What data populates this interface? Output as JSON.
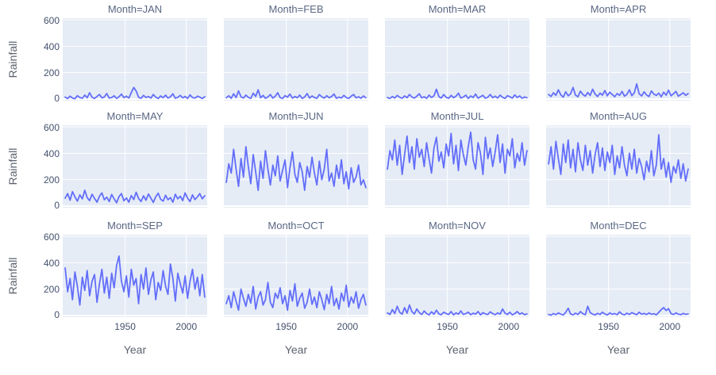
{
  "figure": {
    "y_axis_title": "Rainfall",
    "x_axis_title": "Year",
    "y_ticks": [
      "0",
      "200",
      "400",
      "600"
    ],
    "x_ticks": [
      "1950",
      "2000"
    ]
  },
  "colors": {
    "background": "#ffffff",
    "panel_background": "#e5ecf6",
    "gridline": "#ffffff",
    "line": "#636efa",
    "facet_title_text": "#5a6784",
    "tick_text": "#44516c",
    "axis_title_text": "#5c626e"
  },
  "chart_data": {
    "type": "line",
    "title": "",
    "facet_by": "Month",
    "facet_layout": "3 rows x 4 columns",
    "xlabel": "Year",
    "ylabel": "Rainfall",
    "x_range": [
      1899,
      2017
    ],
    "y_range": [
      -12,
      612
    ],
    "x_tick_values": [
      1950,
      2000
    ],
    "y_tick_values": [
      0,
      200,
      400,
      600
    ],
    "grid": true,
    "legend": false,
    "line_color": "#636efa",
    "x": [
      1901,
      1903,
      1905,
      1907,
      1909,
      1911,
      1913,
      1915,
      1917,
      1919,
      1921,
      1923,
      1925,
      1927,
      1929,
      1931,
      1933,
      1935,
      1937,
      1939,
      1941,
      1943,
      1945,
      1947,
      1949,
      1951,
      1953,
      1955,
      1957,
      1959,
      1961,
      1963,
      1965,
      1967,
      1969,
      1971,
      1973,
      1975,
      1977,
      1979,
      1981,
      1983,
      1985,
      1987,
      1989,
      1991,
      1993,
      1995,
      1997,
      1999,
      2001,
      2003,
      2005,
      2007,
      2009,
      2011,
      2013,
      2015
    ],
    "series": [
      {
        "name": "JAN",
        "label": "Month=JAN",
        "values": [
          15,
          4,
          22,
          8,
          3,
          26,
          12,
          6,
          30,
          10,
          48,
          14,
          5,
          20,
          35,
          9,
          16,
          42,
          7,
          12,
          25,
          5,
          18,
          38,
          10,
          22,
          8,
          50,
          88,
          62,
          14,
          6,
          28,
          12,
          20,
          7,
          35,
          15,
          5,
          24,
          10,
          30,
          8,
          18,
          40,
          6,
          14,
          28,
          9,
          20,
          5,
          32,
          12,
          7,
          22,
          15,
          4,
          18
        ]
      },
      {
        "name": "FEB",
        "label": "Month=FEB",
        "values": [
          10,
          25,
          6,
          40,
          12,
          62,
          18,
          8,
          30,
          14,
          5,
          45,
          20,
          70,
          10,
          28,
          6,
          16,
          35,
          8,
          22,
          48,
          12,
          5,
          26,
          15,
          38,
          7,
          20,
          10,
          30,
          5,
          16,
          42,
          8,
          24,
          12,
          6,
          34,
          18,
          7,
          26,
          10,
          20,
          38,
          6,
          15,
          8,
          28,
          12,
          5,
          22,
          35,
          9,
          18,
          6,
          24,
          10
        ]
      },
      {
        "name": "MAR",
        "label": "Month=MAR",
        "values": [
          12,
          5,
          20,
          8,
          28,
          14,
          6,
          24,
          10,
          35,
          16,
          7,
          22,
          40,
          9,
          18,
          5,
          30,
          12,
          25,
          75,
          20,
          8,
          34,
          14,
          6,
          28,
          10,
          22,
          45,
          8,
          16,
          30,
          5,
          24,
          12,
          38,
          7,
          18,
          28,
          6,
          15,
          35,
          10,
          22,
          8,
          30,
          14,
          5,
          26,
          18,
          7,
          32,
          12,
          24,
          6,
          16,
          10
        ]
      },
      {
        "name": "APR",
        "label": "Month=APR",
        "values": [
          35,
          20,
          48,
          28,
          70,
          32,
          15,
          55,
          25,
          40,
          88,
          30,
          18,
          60,
          35,
          22,
          50,
          28,
          75,
          38,
          20,
          45,
          30,
          65,
          25,
          52,
          35,
          18,
          42,
          28,
          58,
          22,
          36,
          70,
          26,
          48,
          115,
          40,
          24,
          55,
          32,
          20,
          62,
          38,
          28,
          45,
          18,
          52,
          30,
          68,
          25,
          40,
          58,
          22,
          35,
          48,
          28,
          42
        ]
      },
      {
        "name": "MAY",
        "label": "Month=MAY",
        "values": [
          60,
          95,
          45,
          110,
          70,
          38,
          85,
          55,
          120,
          65,
          42,
          90,
          58,
          30,
          75,
          100,
          48,
          68,
          35,
          88,
          55,
          25,
          72,
          95,
          40,
          62,
          30,
          80,
          50,
          105,
          58,
          35,
          78,
          45,
          92,
          60,
          28,
          70,
          98,
          52,
          38,
          82,
          48,
          65,
          30,
          90,
          55,
          75,
          42,
          100,
          60,
          35,
          85,
          50,
          70,
          95,
          55,
          78
        ]
      },
      {
        "name": "JUN",
        "label": "Month=JUN",
        "values": [
          180,
          320,
          250,
          430,
          280,
          150,
          360,
          220,
          450,
          300,
          170,
          390,
          260,
          120,
          340,
          210,
          420,
          280,
          160,
          310,
          230,
          380,
          190,
          270,
          350,
          140,
          290,
          410,
          240,
          180,
          330,
          260,
          120,
          300,
          220,
          370,
          250,
          160,
          340,
          200,
          280,
          430,
          190,
          250,
          150,
          310,
          210,
          350,
          170,
          260,
          130,
          290,
          180,
          220,
          310,
          160,
          200,
          140
        ]
      },
      {
        "name": "JUL",
        "label": "Month=JUL",
        "values": [
          280,
          420,
          350,
          500,
          310,
          460,
          240,
          390,
          530,
          330,
          450,
          280,
          510,
          370,
          430,
          300,
          480,
          360,
          250,
          440,
          520,
          340,
          410,
          290,
          470,
          380,
          550,
          320,
          460,
          270,
          500,
          390,
          310,
          450,
          560,
          350,
          280,
          480,
          400,
          240,
          520,
          360,
          440,
          300,
          410,
          540,
          330,
          470,
          250,
          430,
          380,
          510,
          290,
          400,
          340,
          480,
          310,
          420
        ]
      },
      {
        "name": "AUG",
        "label": "Month=AUG",
        "values": [
          320,
          450,
          280,
          490,
          360,
          240,
          470,
          330,
          500,
          290,
          430,
          260,
          480,
          350,
          270,
          460,
          310,
          420,
          250,
          390,
          480,
          300,
          440,
          270,
          410,
          330,
          460,
          240,
          380,
          290,
          450,
          310,
          230,
          400,
          280,
          430,
          250,
          360,
          300,
          200,
          340,
          260,
          420,
          230,
          310,
          540,
          280,
          360,
          220,
          330,
          180,
          300,
          250,
          350,
          210,
          320,
          190,
          280
        ]
      },
      {
        "name": "SEP",
        "label": "Month=SEP",
        "values": [
          360,
          180,
          280,
          120,
          330,
          220,
          80,
          290,
          190,
          340,
          150,
          260,
          310,
          100,
          240,
          350,
          170,
          290,
          130,
          320,
          210,
          380,
          450,
          260,
          180,
          300,
          140,
          350,
          230,
          280,
          90,
          310,
          200,
          360,
          160,
          270,
          330,
          120,
          250,
          190,
          340,
          220,
          160,
          390,
          280,
          110,
          320,
          240,
          170,
          300,
          130,
          260,
          350,
          200,
          290,
          150,
          310,
          140
        ]
      },
      {
        "name": "OCT",
        "label": "Month=OCT",
        "values": [
          90,
          150,
          60,
          180,
          110,
          40,
          200,
          130,
          70,
          160,
          95,
          220,
          50,
          140,
          180,
          80,
          120,
          250,
          100,
          60,
          170,
          130,
          210,
          90,
          150,
          40,
          190,
          110,
          240,
          70,
          130,
          170,
          55,
          100,
          200,
          85,
          140,
          60,
          180,
          120,
          45,
          160,
          90,
          220,
          75,
          130,
          50,
          170,
          110,
          230,
          65,
          140,
          95,
          180,
          55,
          120,
          160,
          80
        ]
      },
      {
        "name": "NOV",
        "label": "Month=NOV",
        "values": [
          20,
          8,
          45,
          15,
          70,
          25,
          10,
          60,
          18,
          80,
          30,
          12,
          50,
          22,
          8,
          35,
          15,
          5,
          28,
          10,
          40,
          12,
          6,
          25,
          15,
          8,
          30,
          5,
          20,
          10,
          35,
          8,
          15,
          25,
          6,
          18,
          10,
          30,
          5,
          22,
          12,
          8,
          28,
          15,
          6,
          20,
          10,
          50,
          18,
          8,
          25,
          5,
          15,
          30,
          10,
          20,
          6,
          12
        ]
      },
      {
        "name": "DEC",
        "label": "Month=DEC",
        "values": [
          8,
          3,
          15,
          6,
          20,
          10,
          4,
          25,
          55,
          12,
          5,
          18,
          8,
          30,
          14,
          6,
          70,
          22,
          10,
          5,
          16,
          8,
          25,
          12,
          4,
          20,
          9,
          15,
          6,
          28,
          11,
          5,
          18,
          8,
          22,
          13,
          6,
          25,
          10,
          16,
          7,
          20,
          9,
          14,
          5,
          24,
          45,
          60,
          38,
          52,
          15,
          8,
          20,
          10,
          6,
          16,
          9,
          12
        ]
      }
    ]
  }
}
